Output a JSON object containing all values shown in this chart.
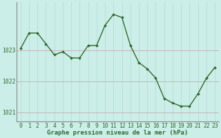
{
  "x": [
    0,
    1,
    2,
    3,
    4,
    5,
    6,
    7,
    8,
    9,
    10,
    11,
    12,
    13,
    14,
    15,
    16,
    17,
    18,
    19,
    20,
    21,
    22,
    23
  ],
  "y": [
    1023.05,
    1023.55,
    1023.55,
    1023.2,
    1022.85,
    1022.95,
    1022.75,
    1022.75,
    1023.15,
    1023.15,
    1023.8,
    1024.15,
    1024.05,
    1023.15,
    1022.6,
    1022.4,
    1022.1,
    1021.45,
    1021.3,
    1021.2,
    1021.2,
    1021.6,
    1022.1,
    1022.45
  ],
  "line_color": "#2d6a2d",
  "marker": "D",
  "marker_size": 2.0,
  "line_width": 1.0,
  "background_color": "#cceee8",
  "grid_color_v": "#b0d8d0",
  "grid_color_h": "#c0a0a0",
  "xlabel": "Graphe pression niveau de la mer (hPa)",
  "ylim": [
    1020.7,
    1024.55
  ],
  "yticks": [
    1021,
    1022,
    1023
  ],
  "xticks": [
    0,
    1,
    2,
    3,
    4,
    5,
    6,
    7,
    8,
    9,
    10,
    11,
    12,
    13,
    14,
    15,
    16,
    17,
    18,
    19,
    20,
    21,
    22,
    23
  ],
  "xlabel_fontsize": 6.5,
  "tick_fontsize": 5.8,
  "tick_color": "#2d6a2d",
  "spine_color": "#888888"
}
